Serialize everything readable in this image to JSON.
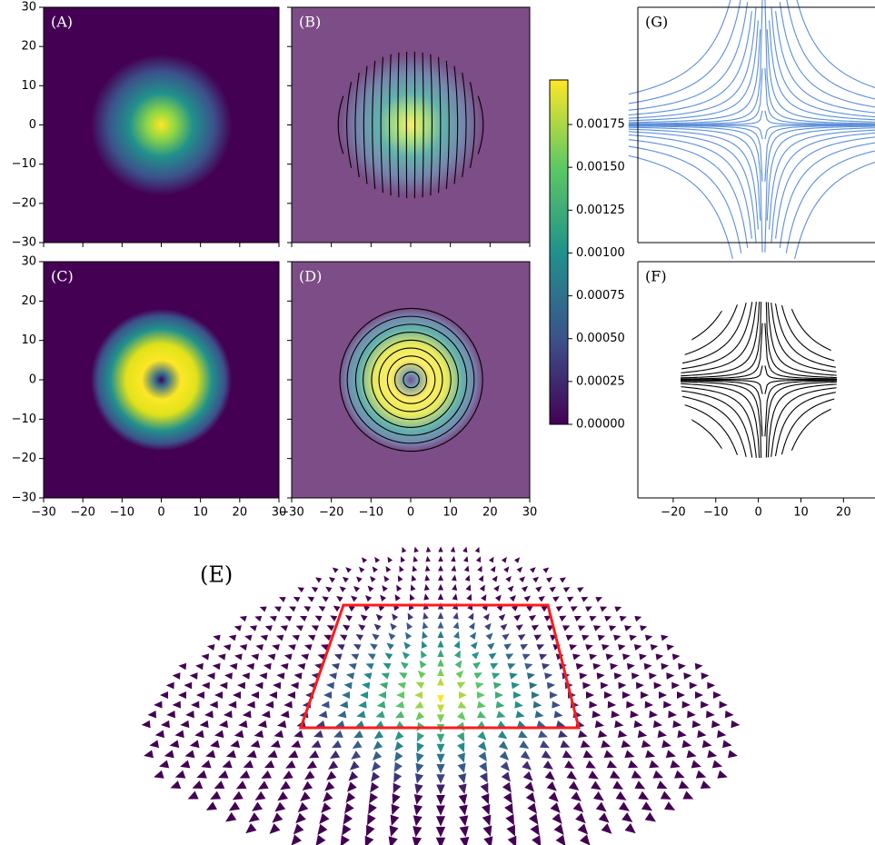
{
  "chart_data": [
    {
      "type": "heatmap",
      "label": "(A)",
      "xlim": [
        -30,
        30
      ],
      "ylim": [
        -30,
        30
      ],
      "yticks": [
        {
          "value": -30,
          "label": "−30"
        },
        {
          "value": -20,
          "label": "−20"
        },
        {
          "value": -10,
          "label": "−10"
        },
        0,
        10,
        20,
        30
      ]
    },
    {
      "type": "heatmap-stream",
      "label": "(B)",
      "xlim": [
        -30,
        30
      ],
      "ylim": [
        -30,
        30
      ]
    },
    {
      "type": "heatmap",
      "label": "(C)",
      "xlim": [
        -30,
        30
      ],
      "ylim": [
        -30,
        30
      ],
      "xticks": [
        {
          "value": -30,
          "label": "−30"
        },
        {
          "value": -20,
          "label": "−20"
        },
        {
          "value": -10,
          "label": "−10"
        },
        0,
        10,
        20,
        30
      ],
      "yticks": [
        {
          "value": -30,
          "label": "−30"
        },
        {
          "value": -20,
          "label": "−20"
        },
        {
          "value": -10,
          "label": "−10"
        },
        0,
        10,
        20,
        30
      ]
    },
    {
      "type": "heatmap-stream",
      "label": "(D)",
      "xlim": [
        -30,
        30
      ],
      "ylim": [
        -30,
        30
      ],
      "xticks": [
        {
          "value": -30,
          "label": "−30"
        },
        {
          "value": -20,
          "label": "−20"
        },
        {
          "value": -10,
          "label": "−10"
        },
        0,
        10,
        20,
        30
      ]
    },
    {
      "type": "colorbar",
      "ylim": [
        0,
        0.00201
      ],
      "yticks": [
        {
          "value": 0,
          "label": "0.00000"
        },
        {
          "value": 0.00025,
          "label": "0.00025"
        },
        {
          "value": 0.0005,
          "label": "0.00050"
        },
        {
          "value": 0.00075,
          "label": "0.00075"
        },
        {
          "value": 0.001,
          "label": "0.00100"
        },
        {
          "value": 0.00125,
          "label": "0.00125"
        },
        {
          "value": 0.0015,
          "label": "0.00150"
        },
        {
          "value": 0.00175,
          "label": "0.00175"
        }
      ]
    },
    {
      "type": "streamplot",
      "label": "(G)",
      "xlim": [
        -28.3,
        27.4
      ]
    },
    {
      "type": "streamplot",
      "label": "(F)",
      "xlim": [
        -28.3,
        27.4
      ],
      "xticks": [
        {
          "value": -20,
          "label": "−20"
        },
        {
          "value": -10,
          "label": "−10"
        },
        0,
        10,
        20
      ]
    },
    {
      "type": "cone",
      "label": "(E)"
    }
  ]
}
